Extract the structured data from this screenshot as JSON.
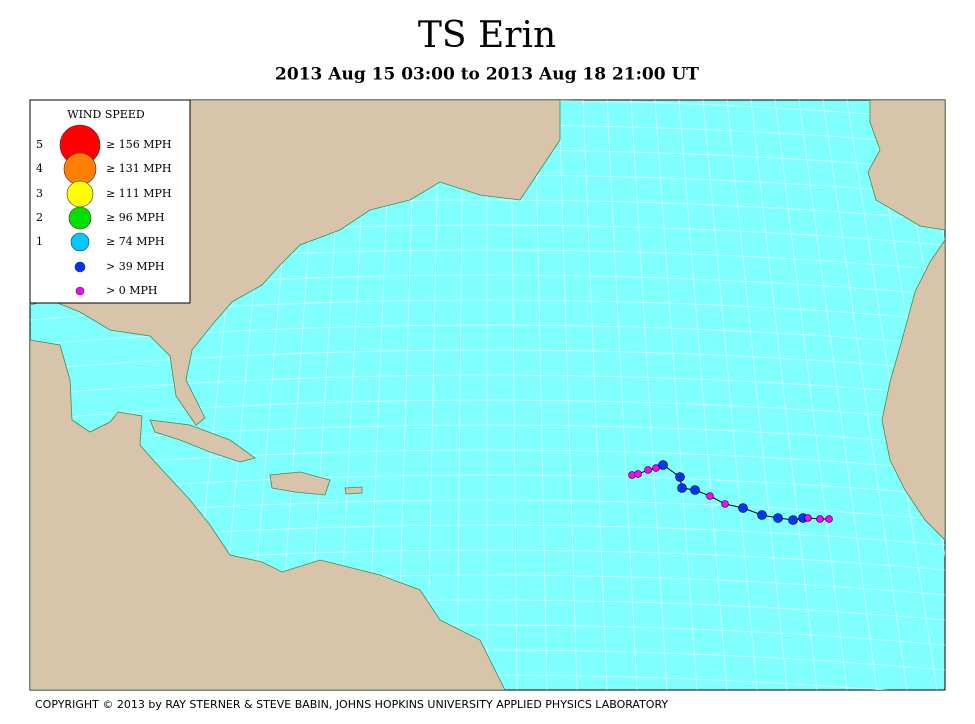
{
  "header": {
    "title": "TS Erin",
    "subtitle": "2013 Aug 15 03:00 to 2013 Aug 18 21:00 UT"
  },
  "legend": {
    "title": "WIND SPEED",
    "items": [
      {
        "category": "5",
        "label": "≥ 156 MPH",
        "color": "#ff0000"
      },
      {
        "category": "4",
        "label": "≥ 131 MPH",
        "color": "#ff7f00"
      },
      {
        "category": "3",
        "label": "≥ 111 MPH",
        "color": "#ffff00"
      },
      {
        "category": "2",
        "label": "≥ 96 MPH",
        "color": "#00e000"
      },
      {
        "category": "1",
        "label": "≥ 74 MPH",
        "color": "#00c8ff"
      },
      {
        "label": "> 39 MPH",
        "color": "#0033ff"
      },
      {
        "label": "> 0 MPH",
        "color": "#ff00ff"
      }
    ]
  },
  "footer": {
    "copyright": "COPYRIGHT © 2013 by RAY STERNER & STEVE BABIN, JOHNS HOPKINS UNIVERSITY APPLIED PHYSICS LABORATORY"
  }
}
